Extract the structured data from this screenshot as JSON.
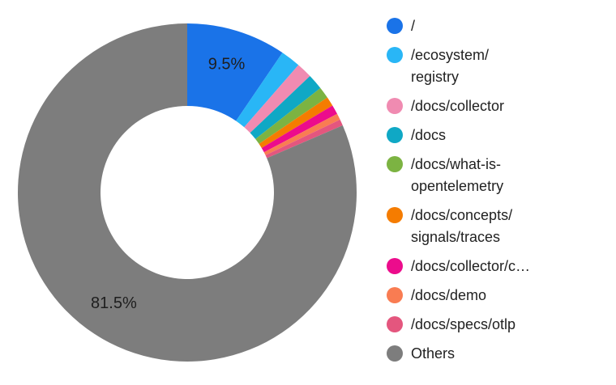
{
  "chart_data": {
    "type": "pie",
    "subtype": "donut",
    "title": "",
    "legend_position": "right",
    "inner_radius_ratio": 0.51,
    "start_angle_deg": 0,
    "direction": "clockwise",
    "unit": "%",
    "value_label_color": "#1e1e1e",
    "legend_text_color": "#212121",
    "visible_value_labels": [
      "9.5%",
      "81.5%"
    ],
    "slices": [
      {
        "label": "/",
        "legend_label": "/",
        "value": 9.5,
        "color": "#1a73e8",
        "pct_label": "9.5%"
      },
      {
        "label": "/ecosystem/registry",
        "legend_label": "/ecosystem/\nregistry",
        "value": 1.9,
        "color": "#29b6f6",
        "pct_label": ""
      },
      {
        "label": "/docs/collector",
        "legend_label": "/docs/collector",
        "value": 1.5,
        "color": "#f08bb1",
        "pct_label": ""
      },
      {
        "label": "/docs",
        "legend_label": "/docs",
        "value": 1.5,
        "color": "#0fa8c5",
        "pct_label": ""
      },
      {
        "label": "/docs/what-is-opentelemetry",
        "legend_label": "/docs/what-is-\nopentelemetry",
        "value": 1.1,
        "color": "#7cb342",
        "pct_label": ""
      },
      {
        "label": "/docs/concepts/signals/traces",
        "legend_label": "/docs/concepts/\nsignals/traces",
        "value": 0.9,
        "color": "#f57c00",
        "pct_label": ""
      },
      {
        "label": "/docs/collector/c…",
        "legend_label": "/docs/collector/c…",
        "value": 0.9,
        "color": "#ec0c8c",
        "pct_label": ""
      },
      {
        "label": "/docs/demo",
        "legend_label": "/docs/demo",
        "value": 0.6,
        "color": "#f97c52",
        "pct_label": ""
      },
      {
        "label": "/docs/specs/otlp",
        "legend_label": "/docs/specs/otlp",
        "value": 0.6,
        "color": "#e4567e",
        "pct_label": ""
      },
      {
        "label": "Others",
        "legend_label": "Others",
        "value": 81.5,
        "color": "#7d7d7d",
        "pct_label": "81.5%"
      }
    ]
  }
}
